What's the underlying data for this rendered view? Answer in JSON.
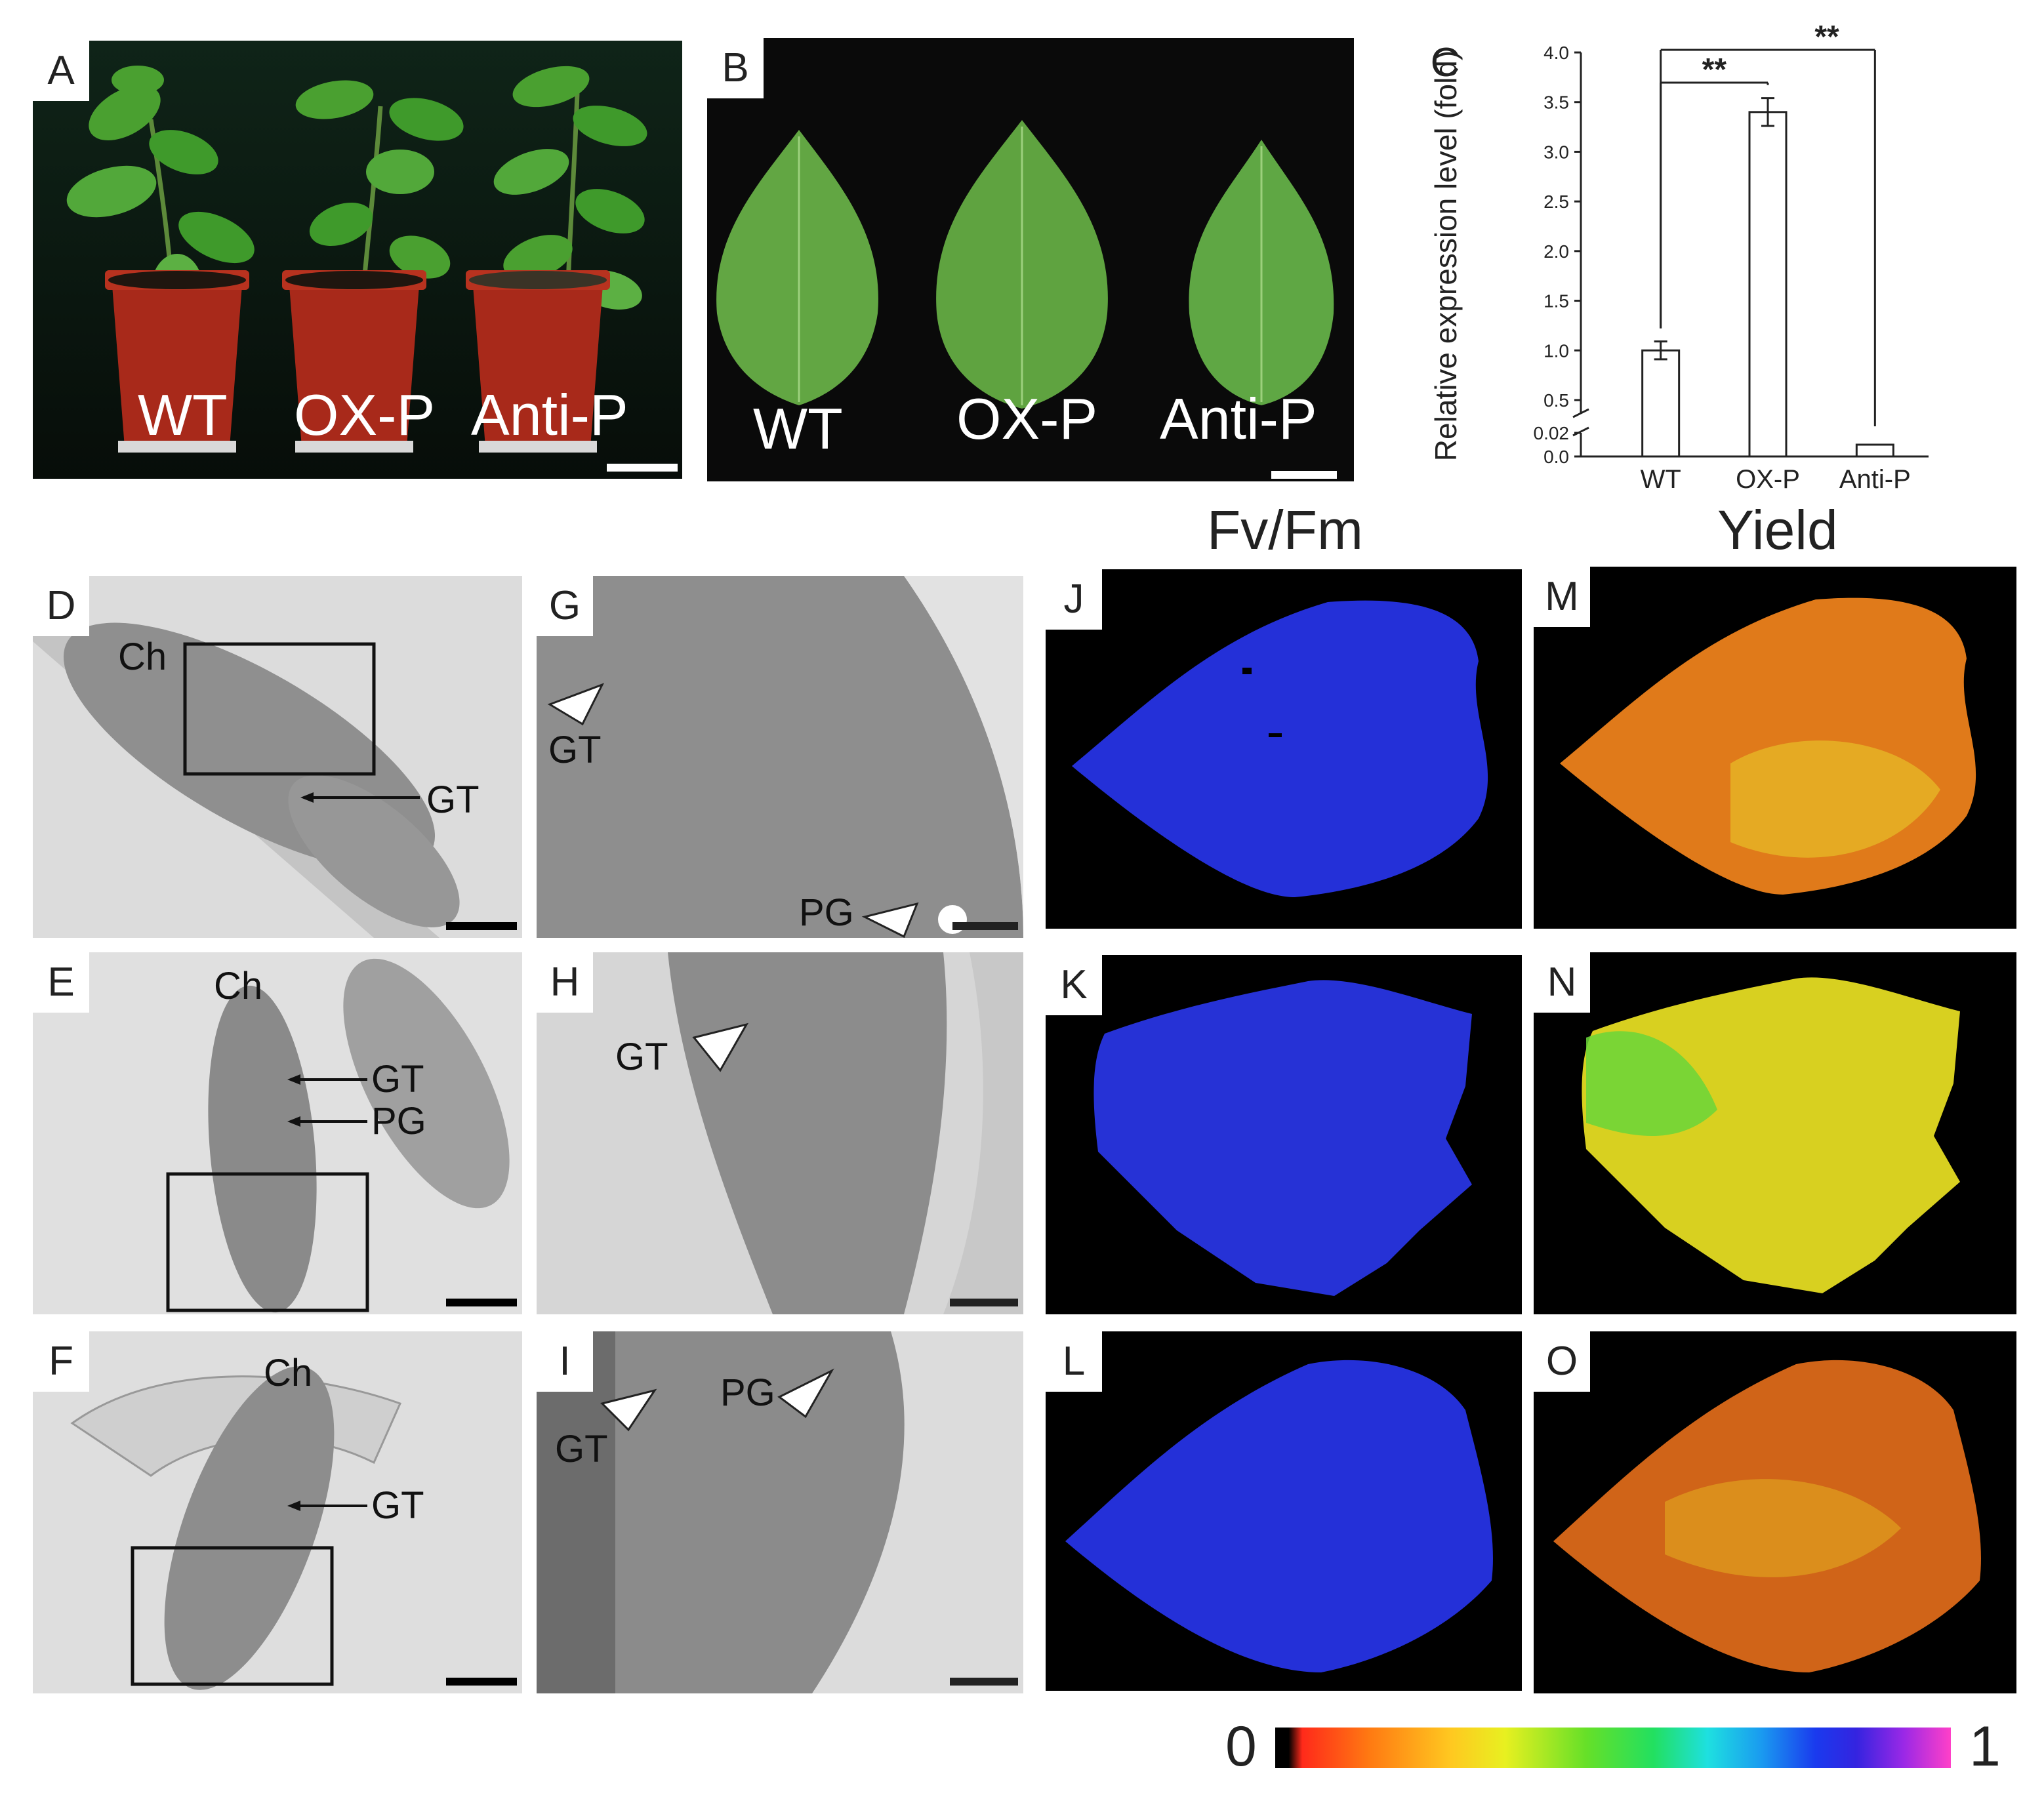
{
  "panels": {
    "A": {
      "label": "A",
      "texts": [
        "WT",
        "OX-P",
        "Anti-P"
      ]
    },
    "B": {
      "label": "B",
      "texts": [
        "WT",
        "OX-P",
        "Anti-P"
      ]
    },
    "C": {
      "label": "C"
    },
    "D": {
      "label": "D",
      "ch": "Ch",
      "gt": "GT"
    },
    "E": {
      "label": "E",
      "ch": "Ch",
      "gt": "GT",
      "pg": "PG"
    },
    "F": {
      "label": "F",
      "ch": "Ch",
      "gt": "GT"
    },
    "G": {
      "label": "G",
      "gt": "GT",
      "pg": "PG"
    },
    "H": {
      "label": "H",
      "gt": "GT"
    },
    "I": {
      "label": "I",
      "gt": "GT",
      "pg": "PG"
    },
    "J": {
      "label": "J"
    },
    "K": {
      "label": "K"
    },
    "L": {
      "label": "L"
    },
    "M": {
      "label": "M"
    },
    "N": {
      "label": "N"
    },
    "O": {
      "label": "O"
    }
  },
  "column_titles": {
    "fvfm": "Fv/Fm",
    "yield": "Yield"
  },
  "colorbar": {
    "min": "0",
    "max": "1"
  },
  "chart_data": {
    "type": "bar",
    "ylabel": "Relative expression level (fold)",
    "categories": [
      "WT",
      "OX-P",
      "Anti-P"
    ],
    "values": [
      1.0,
      3.4,
      0.01
    ],
    "errors": [
      0.09,
      0.14,
      0.002
    ],
    "ylim": [
      0,
      4.0
    ],
    "y_break": true,
    "yticks_upper": [
      "0.5",
      "1.0",
      "1.5",
      "2.0",
      "2.5",
      "3.0",
      "3.5",
      "4.0"
    ],
    "yticks_lower": [
      "0.0",
      "0.02"
    ],
    "significance": [
      {
        "from": "WT",
        "to": "OX-P",
        "label": "**"
      },
      {
        "from": "WT",
        "to": "Anti-P",
        "label": "**"
      }
    ],
    "grid": false
  },
  "colors": {
    "fvfm_leaf": "#2430d8",
    "yield_leaf": "#e07a1a",
    "plant_leaf": "#3f9a2b",
    "pot": "#a8291a"
  }
}
